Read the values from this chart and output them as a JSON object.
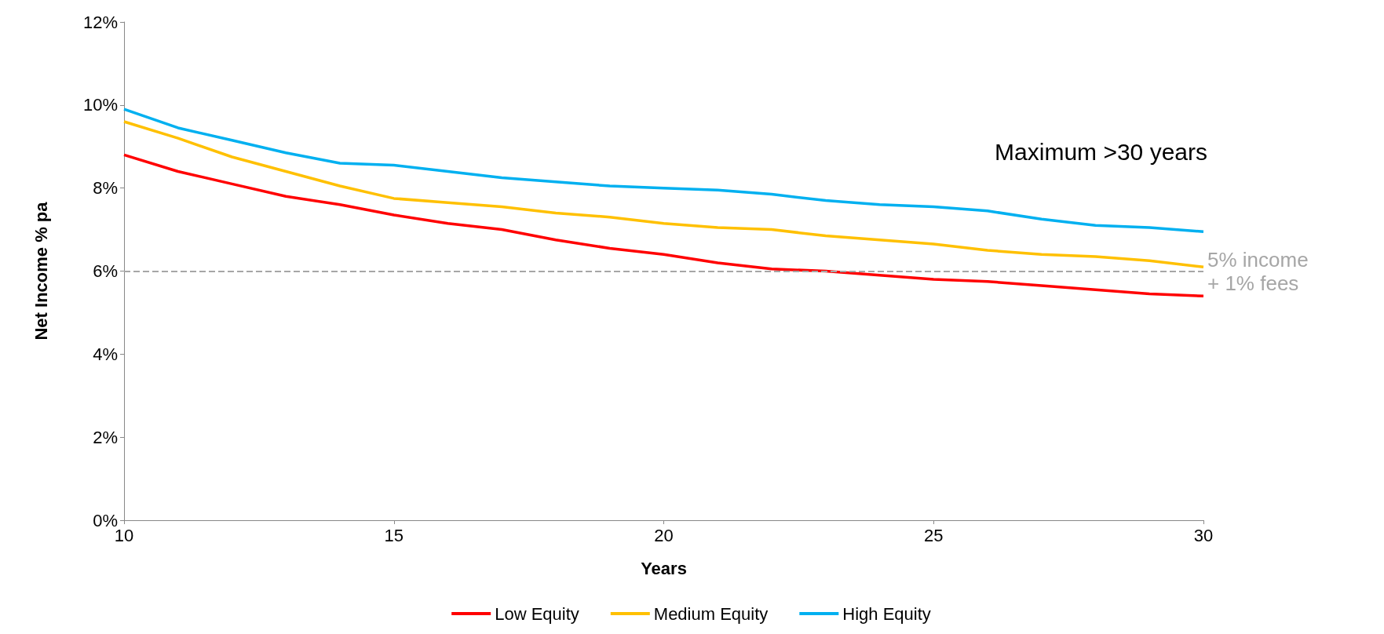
{
  "chart_data": {
    "type": "line",
    "xlabel": "Years",
    "ylabel": "Net Income % pa",
    "x": [
      10,
      11,
      12,
      13,
      14,
      15,
      16,
      17,
      18,
      19,
      20,
      21,
      22,
      23,
      24,
      25,
      26,
      27,
      28,
      29,
      30
    ],
    "series": [
      {
        "name": "Low Equity",
        "color": "#ff0000",
        "values": [
          8.8,
          8.4,
          8.1,
          7.8,
          7.6,
          7.35,
          7.15,
          7.0,
          6.75,
          6.55,
          6.4,
          6.2,
          6.05,
          6.0,
          5.9,
          5.8,
          5.75,
          5.65,
          5.55,
          5.45,
          5.4
        ]
      },
      {
        "name": "Medium Equity",
        "color": "#ffc000",
        "values": [
          9.6,
          9.2,
          8.75,
          8.4,
          8.05,
          7.75,
          7.65,
          7.55,
          7.4,
          7.3,
          7.15,
          7.05,
          7.0,
          6.85,
          6.75,
          6.65,
          6.5,
          6.4,
          6.35,
          6.25,
          6.1
        ]
      },
      {
        "name": "High Equity",
        "color": "#00b0f0",
        "values": [
          9.9,
          9.45,
          9.15,
          8.85,
          8.6,
          8.55,
          8.4,
          8.25,
          8.15,
          8.05,
          8.0,
          7.95,
          7.85,
          7.7,
          7.6,
          7.55,
          7.45,
          7.25,
          7.1,
          7.05,
          6.95
        ]
      }
    ],
    "xlim": [
      10,
      30
    ],
    "xticks": [
      10,
      15,
      20,
      25,
      30
    ],
    "ylim": [
      0,
      12
    ],
    "yticks": [
      {
        "value": 0,
        "label": "0%"
      },
      {
        "value": 2,
        "label": "2%"
      },
      {
        "value": 4,
        "label": "4%"
      },
      {
        "value": 6,
        "label": "6%"
      },
      {
        "value": 8,
        "label": "8%"
      },
      {
        "value": 10,
        "label": "10%"
      },
      {
        "value": 12,
        "label": "12%"
      }
    ],
    "ref_lines": [
      {
        "axis": "y",
        "value": 6,
        "label": "5% income + 1% fees",
        "color": "#a6a6a6",
        "line_style": "dashed"
      }
    ],
    "annotations": [
      "Maximum >30 years"
    ],
    "grid": false,
    "legend": "bottom",
    "marker": "none",
    "line_style": "solid"
  }
}
